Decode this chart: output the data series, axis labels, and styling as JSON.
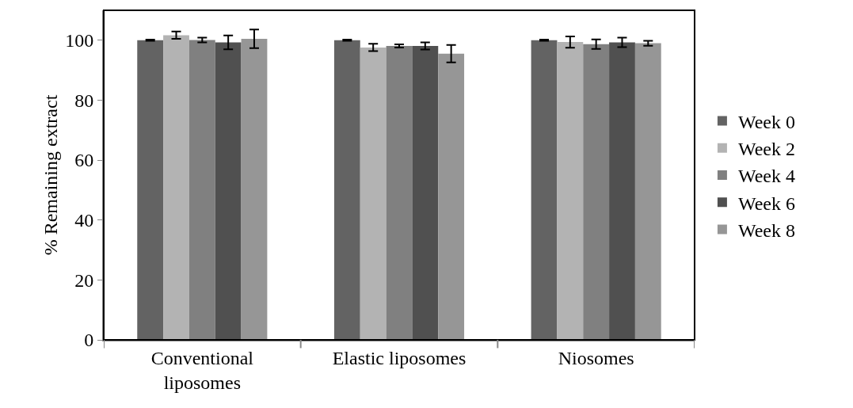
{
  "chart_data": {
    "type": "bar",
    "ylabel": "% Remaining extract",
    "categories": [
      "Conventional liposomes",
      "Elastic liposomes",
      "Niosomes"
    ],
    "series": [
      {
        "name": "Week 0",
        "color": "#636363",
        "values": [
          100,
          100,
          100
        ],
        "errors": [
          0.2,
          0.2,
          0.2
        ]
      },
      {
        "name": "Week 2",
        "color": "#b3b3b3",
        "values": [
          101.7,
          97.6,
          99.4
        ],
        "errors": [
          1.2,
          1.2,
          1.9
        ]
      },
      {
        "name": "Week 4",
        "color": "#808080",
        "values": [
          100.1,
          98.1,
          98.7
        ],
        "errors": [
          0.8,
          0.5,
          1.6
        ]
      },
      {
        "name": "Week 6",
        "color": "#505050",
        "values": [
          99.3,
          98.1,
          99.3
        ],
        "errors": [
          2.3,
          1.2,
          1.6
        ]
      },
      {
        "name": "Week 8",
        "color": "#969696",
        "values": [
          100.5,
          95.5,
          99
        ],
        "errors": [
          3.1,
          2.9,
          0.8
        ]
      }
    ],
    "ylim": [
      0,
      110
    ],
    "yticks": [
      0,
      20,
      40,
      60,
      80,
      100
    ],
    "grid": false,
    "legend": "right"
  }
}
